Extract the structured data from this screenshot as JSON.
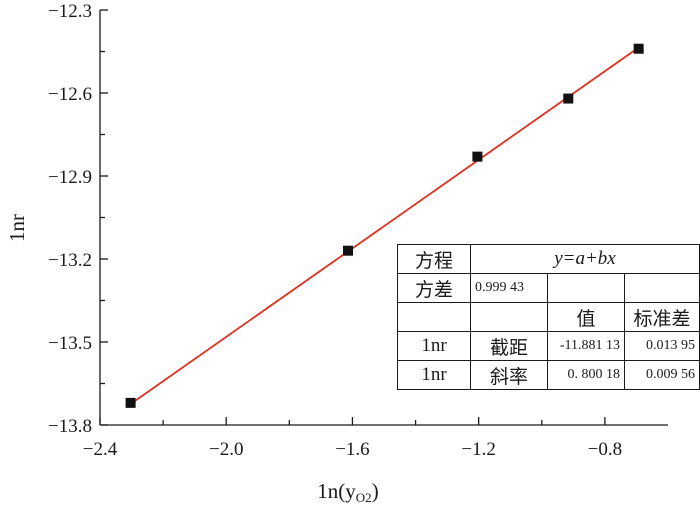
{
  "chart_data": {
    "type": "scatter",
    "xlabel": "1n(y",
    "xlabel_sub": "O2",
    "xlabel_close": ")",
    "ylabel": "1nr",
    "xlim": [
      -2.4,
      -0.6
    ],
    "ylim": [
      -13.8,
      -12.3
    ],
    "x_ticks": [
      -2.4,
      -2.0,
      -1.6,
      -1.2,
      -0.8
    ],
    "x_tick_labels": [
      "−2.4",
      "−2.0",
      "−1.6",
      "−1.2",
      "−0.8"
    ],
    "y_ticks": [
      -13.8,
      -13.5,
      -13.2,
      -12.9,
      -12.6,
      -12.3
    ],
    "y_tick_labels": [
      "−13.8",
      "−13.5",
      "−13.2",
      "−12.9",
      "−12.6",
      "−12.3"
    ],
    "series": [
      {
        "x": [
          -2.303,
          -1.614,
          -1.204,
          -0.916,
          -0.693
        ],
        "y": [
          -13.72,
          -13.17,
          -12.83,
          -12.62,
          -12.44
        ],
        "marker": "square",
        "color": "#111111"
      }
    ],
    "fit_line": {
      "intercept": -11.88113,
      "slope": 0.80018,
      "x_range": [
        -2.303,
        -0.693
      ],
      "color": "#e0301e"
    },
    "grid": false
  },
  "table": {
    "rows": [
      [
        "方程",
        "y=a+bx",
        "",
        ""
      ],
      [
        "方差",
        "0.999 43",
        "",
        ""
      ],
      [
        "",
        "",
        "值",
        "标准差"
      ],
      [
        "1nr",
        "截距",
        "-11.881 13",
        "0.013 95"
      ],
      [
        "1nr",
        "斜率",
        "0. 800 18",
        "0.009 56"
      ]
    ]
  }
}
